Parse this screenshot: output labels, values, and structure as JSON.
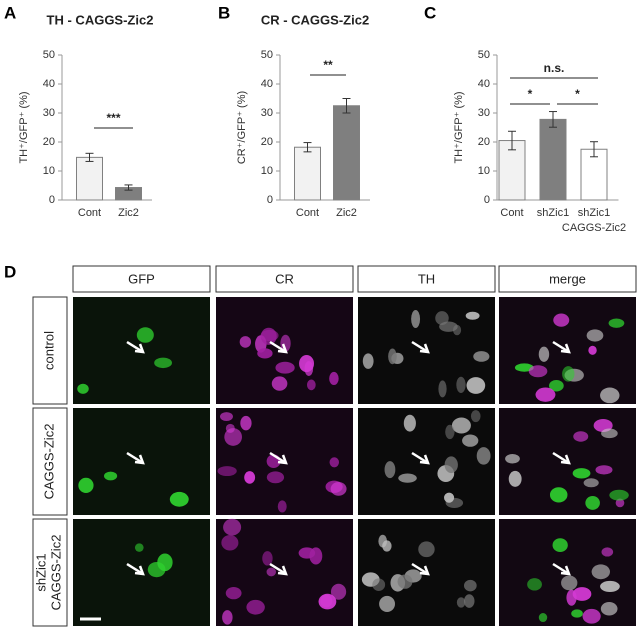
{
  "panel_labels": [
    "A",
    "B",
    "C",
    "D"
  ],
  "chart_data": [
    {
      "type": "bar",
      "title": "TH - CAGGS-Zic2",
      "y_label": "TH⁺/GFP⁺ (%)",
      "categories": [
        "Cont",
        "Zic2"
      ],
      "values": [
        14.7,
        4.3
      ],
      "errors": [
        1.4,
        0.9
      ],
      "colors": [
        "#f2f2f2",
        "#7f7f7f"
      ],
      "ylim": [
        0,
        50
      ],
      "yticks": [
        0,
        10,
        20,
        30,
        40,
        50
      ],
      "annotations": [
        "***"
      ]
    },
    {
      "type": "bar",
      "title": "CR - CAGGS-Zic2",
      "y_label": "CR⁺/GFP⁺ (%)",
      "categories": [
        "Cont",
        "Zic2"
      ],
      "values": [
        18.2,
        32.5
      ],
      "errors": [
        1.6,
        2.5
      ],
      "colors": [
        "#f2f2f2",
        "#7f7f7f"
      ],
      "ylim": [
        0,
        50
      ],
      "yticks": [
        0,
        10,
        20,
        30,
        40,
        50
      ],
      "annotations": [
        "**"
      ]
    },
    {
      "type": "bar",
      "y_label": "TH⁺/GFP⁺ (%)",
      "categories": [
        "Cont",
        "shZic1",
        "shZic1 CAGGS-Zic2"
      ],
      "values": [
        20.5,
        27.8,
        17.5
      ],
      "errors": [
        3.2,
        2.7,
        2.6
      ],
      "colors": [
        "#f2f2f2",
        "#7f7f7f",
        "#ffffff"
      ],
      "ylim": [
        0,
        50
      ],
      "yticks": [
        0,
        10,
        20,
        30,
        40,
        50
      ],
      "annotations": [
        "n.s.",
        "*",
        "*"
      ]
    }
  ],
  "micrographs": {
    "columns": [
      "GFP",
      "CR",
      "TH",
      "merge"
    ],
    "rows": [
      "control",
      "CAGGS-Zic2",
      "shZic1 CAGGS-Zic2"
    ]
  }
}
